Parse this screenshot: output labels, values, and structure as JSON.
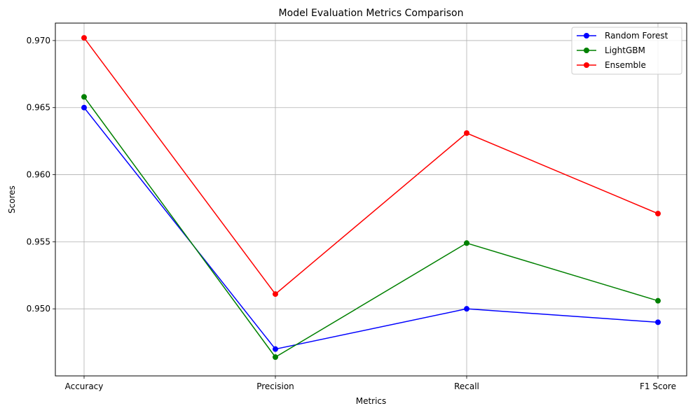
{
  "chart_data": {
    "type": "line",
    "title": "Model Evaluation Metrics Comparison",
    "xlabel": "Metrics",
    "ylabel": "Scores",
    "categories": [
      "Accuracy",
      "Precision",
      "Recall",
      "F1 Score"
    ],
    "ylim": [
      0.945,
      0.9713
    ],
    "yticks": [
      0.95,
      0.955,
      0.96,
      0.965,
      0.97
    ],
    "ytick_labels": [
      "0.950",
      "0.955",
      "0.960",
      "0.965",
      "0.970"
    ],
    "grid": true,
    "legend_position": "top-right",
    "marker": "circle",
    "series": [
      {
        "name": "Random Forest",
        "color": "#0000ff",
        "values": [
          0.965,
          0.947,
          0.95,
          0.949
        ]
      },
      {
        "name": "LightGBM",
        "color": "#008000",
        "values": [
          0.9658,
          0.9464,
          0.9549,
          0.9506
        ]
      },
      {
        "name": "Ensemble",
        "color": "#ff0000",
        "values": [
          0.9702,
          0.9511,
          0.9631,
          0.9571
        ]
      }
    ]
  }
}
